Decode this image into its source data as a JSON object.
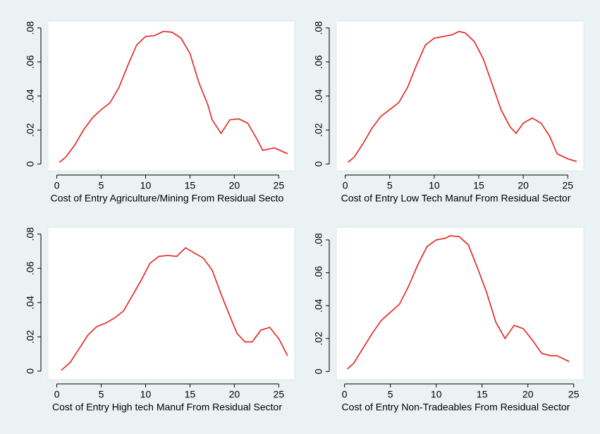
{
  "chart_data": [
    {
      "type": "line",
      "x_label": "Cost of Entry Agriculture/Mining From Residual Secto",
      "color": "#e8201c",
      "x": [
        0.3,
        1,
        2,
        3,
        4,
        5,
        6,
        7,
        8,
        9,
        10,
        11,
        12,
        13,
        14,
        15,
        16,
        17,
        17.5,
        18.5,
        19.5,
        20.5,
        21.5,
        22.5,
        23.2,
        24.5,
        26
      ],
      "values": [
        0.001,
        0.004,
        0.011,
        0.02,
        0.027,
        0.032,
        0.036,
        0.045,
        0.058,
        0.07,
        0.075,
        0.0755,
        0.078,
        0.0775,
        0.074,
        0.065,
        0.048,
        0.035,
        0.026,
        0.018,
        0.026,
        0.0265,
        0.024,
        0.015,
        0.008,
        0.0095,
        0.006
      ],
      "xlim": [
        -1,
        26.8
      ],
      "ylim": [
        -0.004,
        0.084
      ],
      "xticks": [
        0,
        5,
        10,
        15,
        20,
        25
      ],
      "yticks": [
        0,
        {
          "value": 0.02,
          "label": ".02"
        },
        {
          "value": 0.04,
          "label": ".04"
        },
        {
          "value": 0.06,
          "label": ".06"
        },
        {
          "value": 0.08,
          "label": ".08"
        }
      ]
    },
    {
      "type": "line",
      "x_label": "Cost of Entry Low Tech Manuf From Residual Sector",
      "color": "#e8201c",
      "x": [
        0.3,
        1,
        2,
        3,
        4,
        5,
        6,
        7,
        8,
        9,
        10,
        11,
        12,
        12.8,
        13.5,
        14.5,
        15.5,
        16.5,
        17.5,
        18.5,
        19.2,
        20,
        21,
        22,
        23,
        23.8,
        25,
        26
      ],
      "values": [
        0.001,
        0.004,
        0.012,
        0.021,
        0.028,
        0.032,
        0.036,
        0.045,
        0.058,
        0.07,
        0.074,
        0.075,
        0.076,
        0.078,
        0.077,
        0.072,
        0.062,
        0.047,
        0.032,
        0.022,
        0.018,
        0.024,
        0.027,
        0.024,
        0.016,
        0.006,
        0.003,
        0.0015
      ],
      "xlim": [
        -1,
        26.8
      ],
      "ylim": [
        -0.004,
        0.084
      ],
      "xticks": [
        0,
        5,
        10,
        15,
        20,
        25
      ],
      "yticks": [
        0,
        {
          "value": 0.02,
          "label": ".02"
        },
        {
          "value": 0.04,
          "label": ".04"
        },
        {
          "value": 0.06,
          "label": ".06"
        },
        {
          "value": 0.08,
          "label": ".08"
        }
      ]
    },
    {
      "type": "line",
      "x_label": "Cost of Entry High tech Manuf From Residual Sector",
      "color": "#e8201c",
      "x": [
        0.5,
        1.5,
        2.5,
        3.5,
        4.5,
        5.5,
        6.5,
        7.5,
        8.5,
        9.5,
        10.5,
        11.5,
        12.5,
        13.5,
        14.5,
        15.5,
        16.5,
        17.5,
        18.5,
        19.5,
        20.3,
        21.2,
        22,
        23,
        24,
        25,
        26
      ],
      "values": [
        0.0005,
        0.005,
        0.013,
        0.021,
        0.026,
        0.028,
        0.031,
        0.035,
        0.044,
        0.053,
        0.063,
        0.067,
        0.0675,
        0.067,
        0.072,
        0.069,
        0.066,
        0.059,
        0.045,
        0.032,
        0.022,
        0.017,
        0.017,
        0.024,
        0.0255,
        0.019,
        0.009
      ],
      "xlim": [
        -1,
        26.8
      ],
      "ylim": [
        -0.005,
        0.084
      ],
      "xticks": [
        0,
        5,
        10,
        15,
        20,
        25
      ],
      "yticks": [
        0,
        {
          "value": 0.02,
          "label": ".02"
        },
        {
          "value": 0.04,
          "label": ".04"
        },
        {
          "value": 0.06,
          "label": ".06"
        },
        {
          "value": 0.08,
          "label": ".08"
        }
      ]
    },
    {
      "type": "line",
      "x_label": "Cost of Entry Non-Tradeables From Residual Sector",
      "color": "#e8201c",
      "x": [
        0.3,
        1,
        2,
        3,
        4,
        5,
        6,
        7,
        8,
        9,
        10,
        11,
        11.5,
        12.5,
        13.5,
        14.5,
        15.5,
        16.5,
        17.5,
        18.5,
        19.5,
        20.5,
        21.5,
        22.5,
        23.2,
        24.5
      ],
      "values": [
        0.0015,
        0.005,
        0.014,
        0.023,
        0.031,
        0.036,
        0.041,
        0.052,
        0.065,
        0.076,
        0.08,
        0.081,
        0.0825,
        0.082,
        0.077,
        0.063,
        0.048,
        0.03,
        0.02,
        0.028,
        0.026,
        0.019,
        0.011,
        0.0095,
        0.0095,
        0.006
      ],
      "xlim": [
        -0.9,
        26.1
      ],
      "ylim": [
        -0.005,
        0.0877
      ],
      "xticks": [
        0,
        5,
        10,
        15,
        20,
        25
      ],
      "yticks": [
        0,
        {
          "value": 0.02,
          "label": ".02"
        },
        {
          "value": 0.04,
          "label": ".04"
        },
        {
          "value": 0.06,
          "label": ".06"
        },
        {
          "value": 0.08,
          "label": ".08"
        }
      ]
    }
  ]
}
